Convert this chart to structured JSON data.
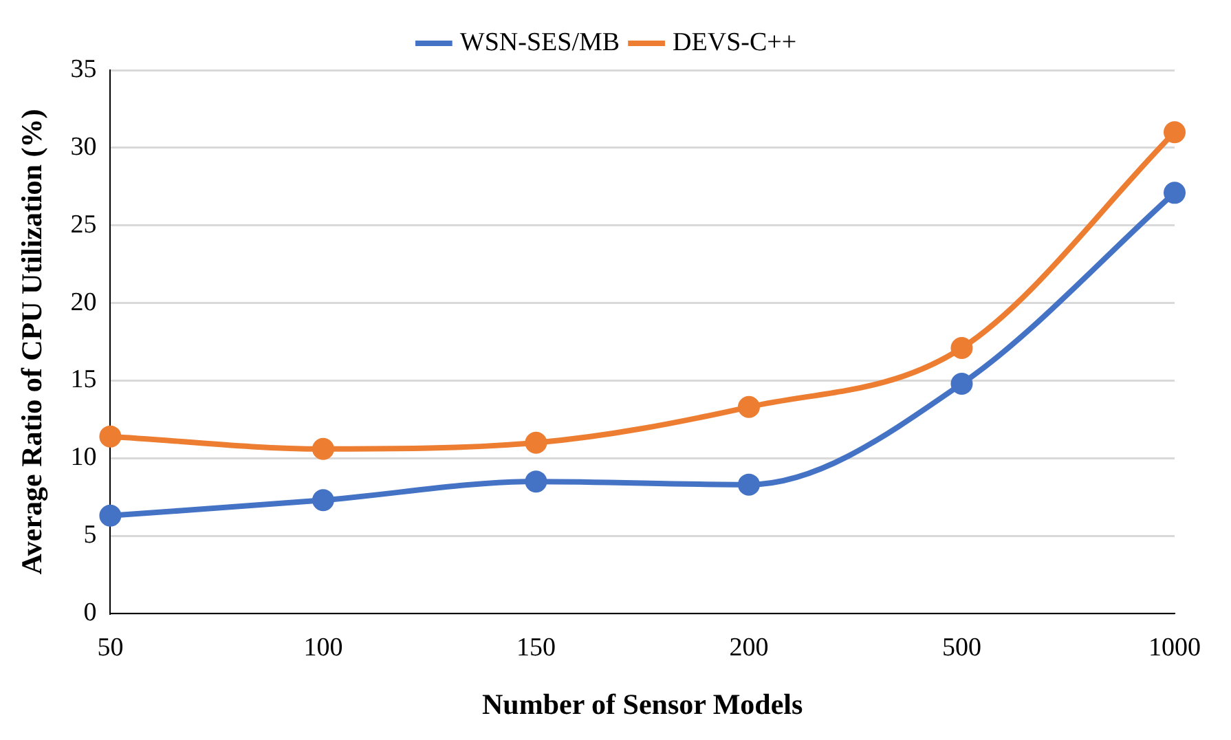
{
  "chart_data": {
    "type": "line",
    "xlabel": "Number of Sensor Models",
    "ylabel": "Average Ratio of CPU Utilization (%)",
    "categories": [
      "50",
      "100",
      "150",
      "200",
      "500",
      "1000"
    ],
    "series": [
      {
        "name": "WSN-SES/MB",
        "color": "#4472c4",
        "values": [
          6.3,
          7.3,
          8.5,
          8.3,
          14.8,
          27.1
        ]
      },
      {
        "name": "DEVS-C++",
        "color": "#ed7d31",
        "values": [
          11.4,
          10.6,
          11.0,
          13.3,
          17.1,
          31.0
        ]
      }
    ],
    "ylim": [
      0,
      35
    ],
    "yticks": [
      0,
      5,
      10,
      15,
      20,
      25,
      30,
      35
    ],
    "grid": "y",
    "legend": "top",
    "marker": "circle",
    "line_style": "solid"
  }
}
